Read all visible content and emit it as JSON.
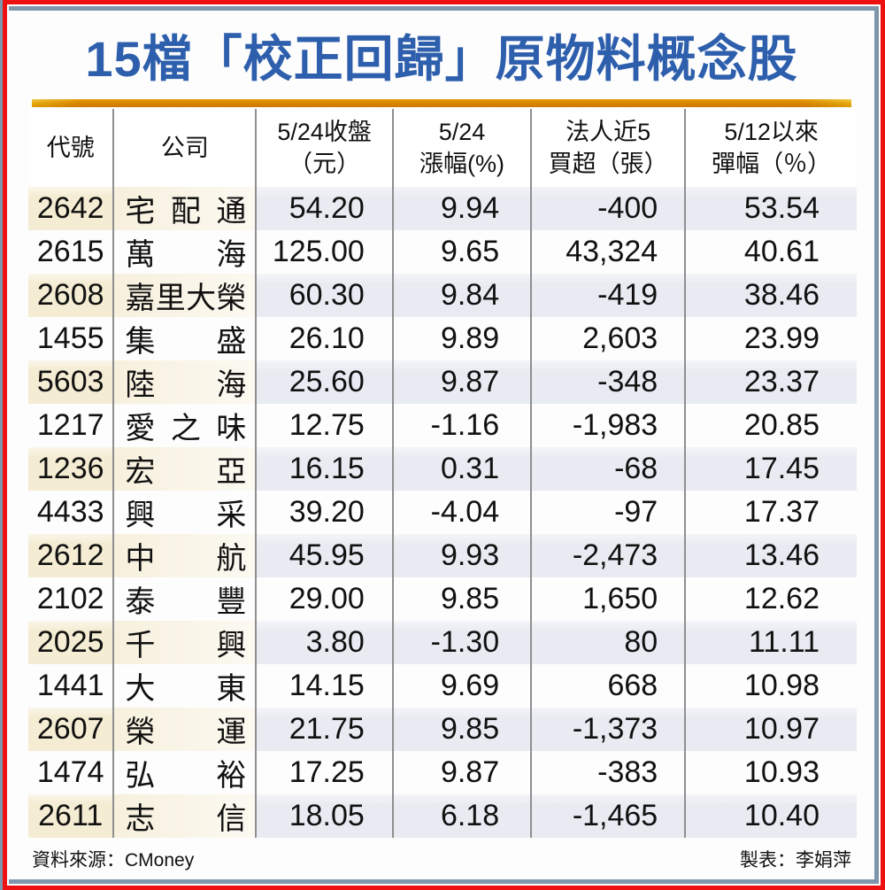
{
  "title": "15檔「校正回歸」原物料概念股",
  "colors": {
    "title_blue": "#2e5fad",
    "border_red": "#ee1111",
    "border_steel": "#7e96ab",
    "gold_rule": "#ecb90f",
    "shaded_row_beige": "#f4ecd3",
    "shaded_row_bluegray": "#e8ebf1"
  },
  "table": {
    "columns": [
      {
        "lines": [
          "代號"
        ]
      },
      {
        "lines": [
          "公司"
        ]
      },
      {
        "lines": [
          "5/24收盤",
          "（元）"
        ]
      },
      {
        "lines": [
          "5/24",
          "漲幅(%)"
        ]
      },
      {
        "lines": [
          "法人近5",
          "買超（張）"
        ]
      },
      {
        "lines": [
          "5/12以來",
          "彈幅（％）"
        ]
      }
    ],
    "rows": [
      {
        "code": "2642",
        "company": "宅配通",
        "close": "54.20",
        "change": "9.94",
        "net_buy": "-400",
        "rebound": "53.54"
      },
      {
        "code": "2615",
        "company": "萬海",
        "close": "125.00",
        "change": "9.65",
        "net_buy": "43,324",
        "rebound": "40.61"
      },
      {
        "code": "2608",
        "company": "嘉里大榮",
        "close": "60.30",
        "change": "9.84",
        "net_buy": "-419",
        "rebound": "38.46"
      },
      {
        "code": "1455",
        "company": "集盛",
        "close": "26.10",
        "change": "9.89",
        "net_buy": "2,603",
        "rebound": "23.99"
      },
      {
        "code": "5603",
        "company": "陸海",
        "close": "25.60",
        "change": "9.87",
        "net_buy": "-348",
        "rebound": "23.37"
      },
      {
        "code": "1217",
        "company": "愛之味",
        "close": "12.75",
        "change": "-1.16",
        "net_buy": "-1,983",
        "rebound": "20.85"
      },
      {
        "code": "1236",
        "company": "宏亞",
        "close": "16.15",
        "change": "0.31",
        "net_buy": "-68",
        "rebound": "17.45"
      },
      {
        "code": "4433",
        "company": "興采",
        "close": "39.20",
        "change": "-4.04",
        "net_buy": "-97",
        "rebound": "17.37"
      },
      {
        "code": "2612",
        "company": "中航",
        "close": "45.95",
        "change": "9.93",
        "net_buy": "-2,473",
        "rebound": "13.46"
      },
      {
        "code": "2102",
        "company": "泰豐",
        "close": "29.00",
        "change": "9.85",
        "net_buy": "1,650",
        "rebound": "12.62"
      },
      {
        "code": "2025",
        "company": "千興",
        "close": "3.80",
        "change": "-1.30",
        "net_buy": "80",
        "rebound": "11.11"
      },
      {
        "code": "1441",
        "company": "大東",
        "close": "14.15",
        "change": "9.69",
        "net_buy": "668",
        "rebound": "10.98"
      },
      {
        "code": "2607",
        "company": "榮運",
        "close": "21.75",
        "change": "9.85",
        "net_buy": "-1,373",
        "rebound": "10.97"
      },
      {
        "code": "1474",
        "company": "弘裕",
        "close": "17.25",
        "change": "9.87",
        "net_buy": "-383",
        "rebound": "10.93"
      },
      {
        "code": "2611",
        "company": "志信",
        "close": "18.05",
        "change": "6.18",
        "net_buy": "-1,465",
        "rebound": "10.40"
      }
    ]
  },
  "footer": {
    "source": "資料來源：CMoney",
    "credit": "製表：李娟萍"
  },
  "chart_data": {
    "type": "table",
    "title": "15檔「校正回歸」原物料概念股",
    "columns": [
      "代號",
      "公司",
      "5/24收盤（元）",
      "5/24漲幅(%)",
      "法人近5買超（張）",
      "5/12以來彈幅（％）"
    ],
    "rows": [
      [
        "2642",
        "宅配通",
        54.2,
        9.94,
        -400,
        53.54
      ],
      [
        "2615",
        "萬海",
        125.0,
        9.65,
        43324,
        40.61
      ],
      [
        "2608",
        "嘉里大榮",
        60.3,
        9.84,
        -419,
        38.46
      ],
      [
        "1455",
        "集盛",
        26.1,
        9.89,
        2603,
        23.99
      ],
      [
        "5603",
        "陸海",
        25.6,
        9.87,
        -348,
        23.37
      ],
      [
        "1217",
        "愛之味",
        12.75,
        -1.16,
        -1983,
        20.85
      ],
      [
        "1236",
        "宏亞",
        16.15,
        0.31,
        -68,
        17.45
      ],
      [
        "4433",
        "興采",
        39.2,
        -4.04,
        -97,
        17.37
      ],
      [
        "2612",
        "中航",
        45.95,
        9.93,
        -2473,
        13.46
      ],
      [
        "2102",
        "泰豐",
        29.0,
        9.85,
        1650,
        12.62
      ],
      [
        "2025",
        "千興",
        3.8,
        -1.3,
        80,
        11.11
      ],
      [
        "1441",
        "大東",
        14.15,
        9.69,
        668,
        10.98
      ],
      [
        "2607",
        "榮運",
        21.75,
        9.85,
        -1373,
        10.97
      ],
      [
        "1474",
        "弘裕",
        17.25,
        9.87,
        -383,
        10.93
      ],
      [
        "2611",
        "志信",
        18.05,
        6.18,
        -1465,
        10.4
      ]
    ],
    "source": "資料來源：CMoney",
    "credit": "製表：李娟萍"
  }
}
